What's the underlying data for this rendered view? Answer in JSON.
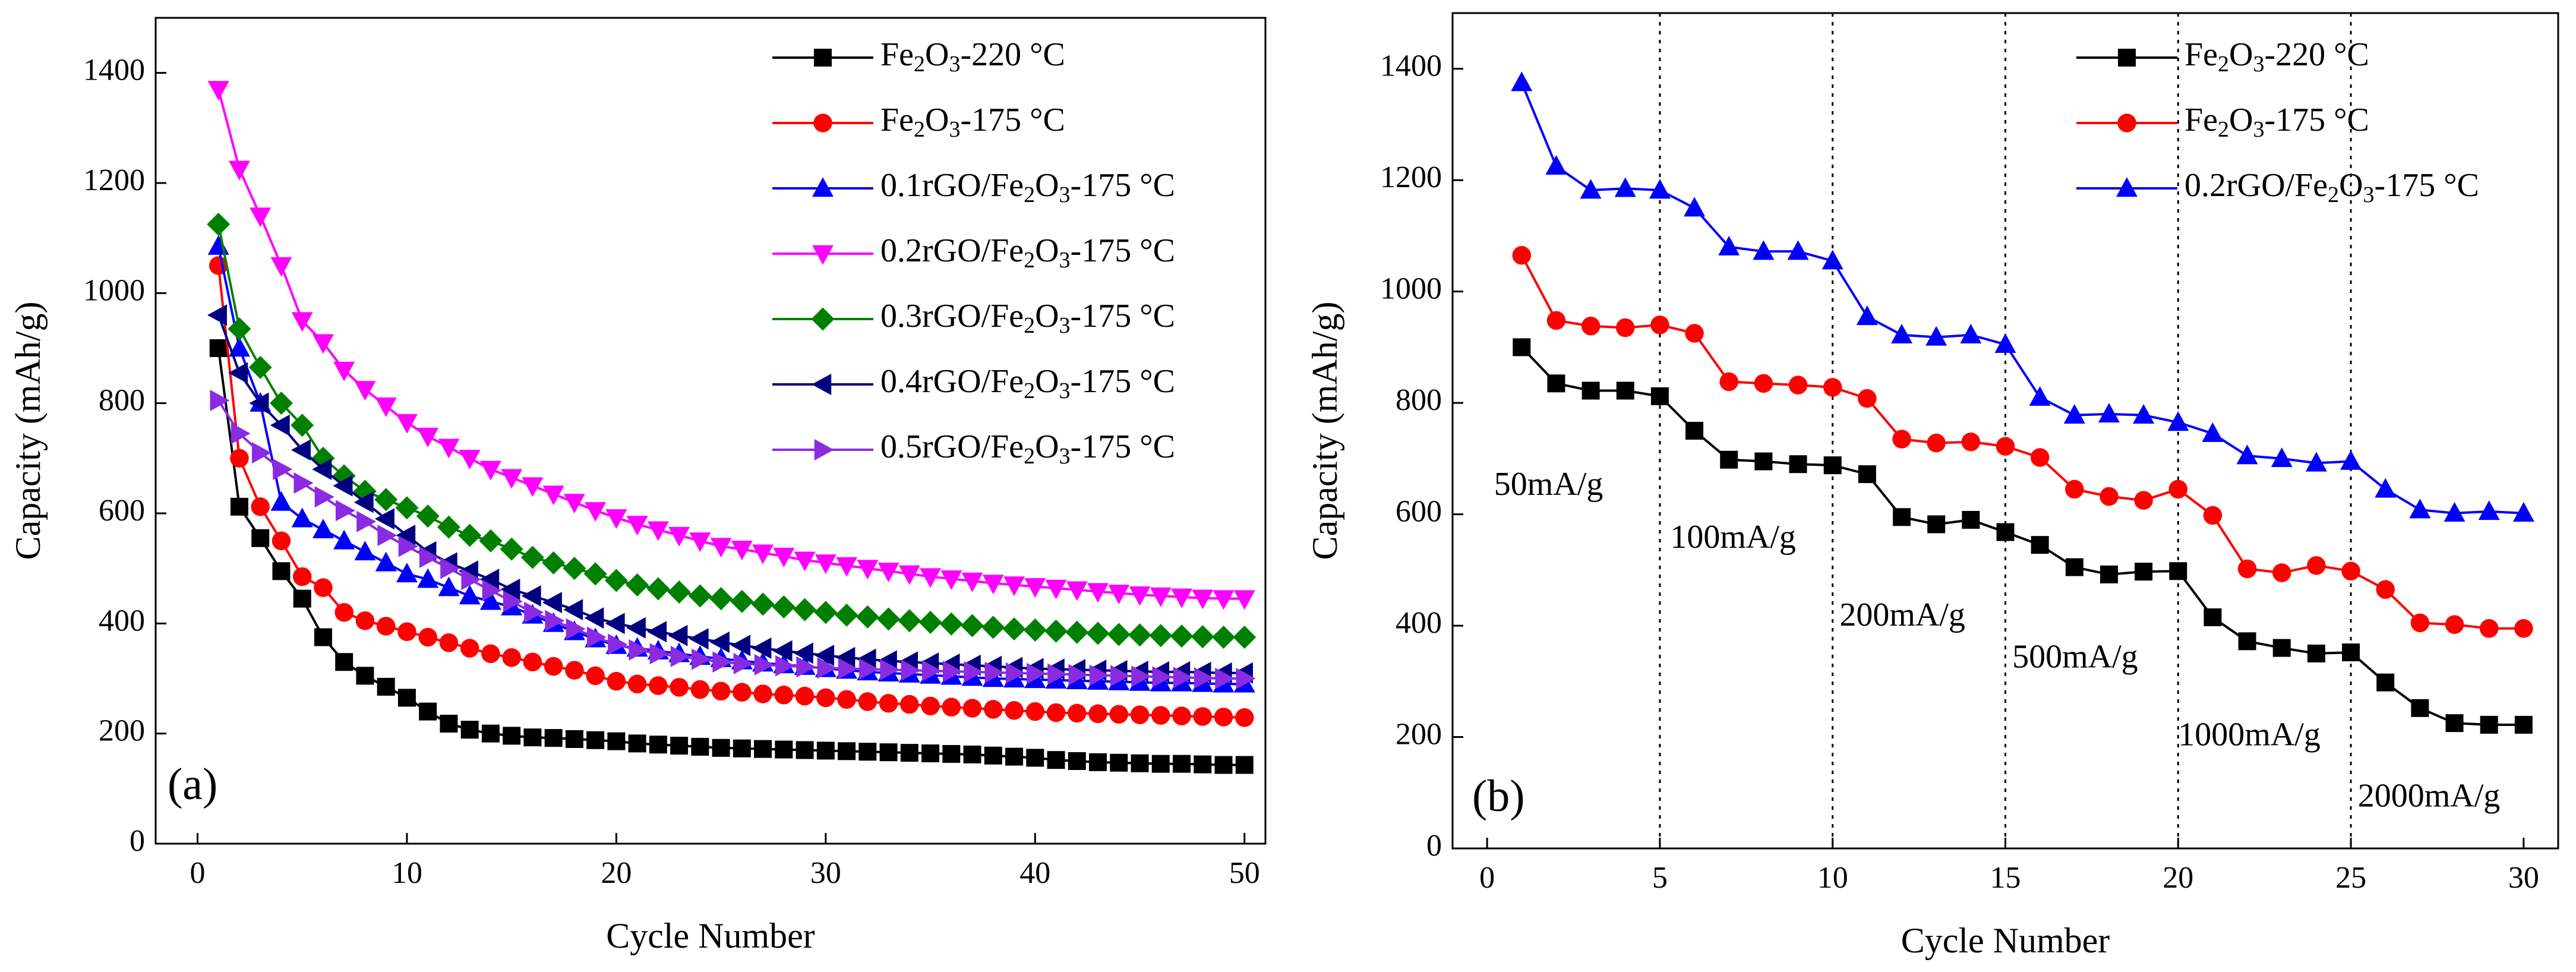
{
  "chart_data": [
    {
      "id": "a",
      "type": "line",
      "panel_label": "(a)",
      "xlabel": "Cycle Number",
      "ylabel": "Capacity (mAh/g)",
      "xlim": [
        -2,
        51
      ],
      "ylim": [
        0,
        1500
      ],
      "xticks": [
        0,
        10,
        20,
        30,
        40,
        50
      ],
      "yticks": [
        0,
        200,
        400,
        600,
        800,
        1000,
        1200,
        1400
      ],
      "legend_position": "top-right",
      "series": [
        {
          "name_pre": "Fe",
          "name_sub": "2",
          "name_mid": "O",
          "name_sub2": "3",
          "name_post": "-220 °C",
          "color": "#000000",
          "marker": "square",
          "x": [
            1,
            2,
            3,
            4,
            5,
            6,
            7,
            8,
            9,
            10,
            11,
            12,
            13,
            14,
            15,
            16,
            17,
            18,
            19,
            20,
            21,
            22,
            23,
            24,
            25,
            26,
            27,
            28,
            29,
            30,
            31,
            32,
            33,
            34,
            35,
            36,
            37,
            38,
            39,
            40,
            41,
            42,
            43,
            44,
            45,
            46,
            47,
            48,
            49,
            50
          ],
          "y": [
            900,
            612,
            555,
            495,
            445,
            375,
            330,
            305,
            285,
            265,
            240,
            218,
            207,
            200,
            196,
            193,
            192,
            190,
            188,
            186,
            182,
            180,
            178,
            176,
            174,
            173,
            172,
            171,
            170,
            169,
            168,
            167,
            166,
            165,
            164,
            163,
            162,
            160,
            158,
            156,
            152,
            150,
            148,
            147,
            146,
            145,
            145,
            144,
            143,
            143
          ]
        },
        {
          "name_pre": "Fe",
          "name_sub": "2",
          "name_mid": "O",
          "name_sub2": "3",
          "name_post": "-175 °C",
          "color": "#ff0000",
          "marker": "circle",
          "x": [
            1,
            2,
            3,
            4,
            5,
            6,
            7,
            8,
            9,
            10,
            11,
            12,
            13,
            14,
            15,
            16,
            17,
            18,
            19,
            20,
            21,
            22,
            23,
            24,
            25,
            26,
            27,
            28,
            29,
            30,
            31,
            32,
            33,
            34,
            35,
            36,
            37,
            38,
            39,
            40,
            41,
            42,
            43,
            44,
            45,
            46,
            47,
            48,
            49,
            50
          ],
          "y": [
            1050,
            700,
            612,
            550,
            485,
            465,
            420,
            405,
            395,
            385,
            375,
            365,
            355,
            345,
            338,
            330,
            322,
            315,
            305,
            295,
            290,
            287,
            284,
            280,
            277,
            275,
            272,
            270,
            268,
            265,
            262,
            258,
            255,
            253,
            250,
            248,
            246,
            244,
            242,
            240,
            238,
            237,
            236,
            235,
            234,
            233,
            232,
            231,
            230,
            229
          ]
        },
        {
          "name_pre": "0.1rGO/Fe",
          "name_sub": "2",
          "name_mid": "O",
          "name_sub2": "3",
          "name_post": "-175 °C",
          "color": "#0000ff",
          "marker": "triangle-up",
          "x": [
            1,
            2,
            3,
            4,
            5,
            6,
            7,
            8,
            9,
            10,
            11,
            12,
            13,
            14,
            15,
            16,
            17,
            18,
            19,
            20,
            21,
            22,
            23,
            24,
            25,
            26,
            27,
            28,
            29,
            30,
            31,
            32,
            33,
            34,
            35,
            36,
            37,
            38,
            39,
            40,
            41,
            42,
            43,
            44,
            45,
            46,
            47,
            48,
            49,
            50
          ],
          "y": [
            1085,
            900,
            800,
            620,
            590,
            570,
            550,
            530,
            510,
            490,
            480,
            465,
            450,
            440,
            430,
            415,
            400,
            385,
            372,
            360,
            355,
            350,
            345,
            340,
            336,
            332,
            328,
            325,
            322,
            318,
            315,
            312,
            310,
            308,
            306,
            304,
            302,
            300,
            299,
            298,
            297,
            296,
            295,
            294,
            293,
            292,
            292,
            291,
            290,
            290
          ]
        },
        {
          "name_pre": "0.2rGO/Fe",
          "name_sub": "2",
          "name_mid": "O",
          "name_sub2": "3",
          "name_post": "-175 °C",
          "color": "#ff00ff",
          "marker": "triangle-down",
          "x": [
            1,
            2,
            3,
            4,
            5,
            6,
            7,
            8,
            9,
            10,
            11,
            12,
            13,
            14,
            15,
            16,
            17,
            18,
            19,
            20,
            21,
            22,
            23,
            24,
            25,
            26,
            27,
            28,
            29,
            30,
            31,
            32,
            33,
            34,
            35,
            36,
            37,
            38,
            39,
            40,
            41,
            42,
            43,
            44,
            45,
            46,
            47,
            48,
            49,
            50
          ],
          "y": [
            1370,
            1225,
            1140,
            1050,
            950,
            910,
            860,
            825,
            795,
            765,
            740,
            720,
            700,
            680,
            665,
            650,
            635,
            620,
            605,
            592,
            580,
            570,
            560,
            550,
            540,
            535,
            528,
            522,
            515,
            510,
            505,
            500,
            495,
            490,
            485,
            481,
            477,
            473,
            470,
            467,
            464,
            461,
            458,
            455,
            452,
            450,
            448,
            446,
            445,
            445
          ]
        },
        {
          "name_pre": "0.3rGO/Fe",
          "name_sub": "2",
          "name_mid": "O",
          "name_sub2": "3",
          "name_post": "-175 °C",
          "color": "#008000",
          "marker": "diamond",
          "x": [
            1,
            2,
            3,
            4,
            5,
            6,
            7,
            8,
            9,
            10,
            11,
            12,
            13,
            14,
            15,
            16,
            17,
            18,
            19,
            20,
            21,
            22,
            23,
            24,
            25,
            26,
            27,
            28,
            29,
            30,
            31,
            32,
            33,
            34,
            35,
            36,
            37,
            38,
            39,
            40,
            41,
            42,
            43,
            44,
            45,
            46,
            47,
            48,
            49,
            50
          ],
          "y": [
            1125,
            935,
            865,
            800,
            760,
            700,
            668,
            640,
            625,
            610,
            595,
            575,
            560,
            550,
            535,
            520,
            510,
            500,
            490,
            478,
            470,
            463,
            457,
            450,
            445,
            440,
            435,
            430,
            425,
            420,
            415,
            412,
            408,
            405,
            402,
            399,
            396,
            393,
            390,
            388,
            386,
            384,
            382,
            380,
            379,
            378,
            377,
            376,
            375,
            375
          ]
        },
        {
          "name_pre": "0.4rGO/Fe",
          "name_sub": "2",
          "name_mid": "O",
          "name_sub2": "3",
          "name_post": "-175 °C",
          "color": "#000080",
          "marker": "triangle-left",
          "x": [
            1,
            2,
            3,
            4,
            5,
            6,
            7,
            8,
            9,
            10,
            11,
            12,
            13,
            14,
            15,
            16,
            17,
            18,
            19,
            20,
            21,
            22,
            23,
            24,
            25,
            26,
            27,
            28,
            29,
            30,
            31,
            32,
            33,
            34,
            35,
            36,
            37,
            38,
            39,
            40,
            41,
            42,
            43,
            44,
            45,
            46,
            47,
            48,
            49,
            50
          ],
          "y": [
            960,
            855,
            800,
            760,
            715,
            680,
            650,
            620,
            590,
            560,
            530,
            510,
            495,
            480,
            462,
            450,
            438,
            425,
            410,
            400,
            392,
            385,
            378,
            372,
            366,
            360,
            355,
            350,
            346,
            342,
            338,
            335,
            332,
            330,
            328,
            326,
            324,
            322,
            320,
            318,
            317,
            316,
            315,
            314,
            313,
            312,
            312,
            311,
            310,
            310
          ]
        },
        {
          "name_pre": "0.5rGO/Fe",
          "name_sub": "2",
          "name_mid": "O",
          "name_sub2": "3",
          "name_post": "-175 °C",
          "color": "#8a2be2",
          "marker": "triangle-right",
          "x": [
            1,
            2,
            3,
            4,
            5,
            6,
            7,
            8,
            9,
            10,
            11,
            12,
            13,
            14,
            15,
            16,
            17,
            18,
            19,
            20,
            21,
            22,
            23,
            24,
            25,
            26,
            27,
            28,
            29,
            30,
            31,
            32,
            33,
            34,
            35,
            36,
            37,
            38,
            39,
            40,
            41,
            42,
            43,
            44,
            45,
            46,
            47,
            48,
            49,
            50
          ],
          "y": [
            805,
            745,
            710,
            680,
            655,
            630,
            605,
            585,
            560,
            540,
            520,
            500,
            480,
            460,
            440,
            420,
            405,
            390,
            375,
            362,
            352,
            345,
            340,
            335,
            330,
            327,
            325,
            323,
            321,
            319,
            318,
            317,
            316,
            315,
            314,
            313,
            312,
            311,
            310,
            309,
            308,
            307,
            306,
            305,
            304,
            303,
            302,
            301,
            300,
            300
          ]
        }
      ]
    },
    {
      "id": "b",
      "type": "line",
      "panel_label": "(b)",
      "xlabel": "Cycle Number",
      "ylabel": "Capacity (mAh/g)",
      "xlim": [
        -1,
        31
      ],
      "ylim": [
        0,
        1500
      ],
      "xticks": [
        0,
        5,
        10,
        15,
        20,
        25,
        30
      ],
      "yticks": [
        0,
        200,
        400,
        600,
        800,
        1000,
        1200,
        1400
      ],
      "legend_position": "top-right",
      "dividers": [
        5,
        10,
        15,
        20,
        25
      ],
      "rate_labels": [
        {
          "text": "50mA/g",
          "x": 0.2,
          "y": 635
        },
        {
          "text": "100mA/g",
          "x": 5.3,
          "y": 540
        },
        {
          "text": "200mA/g",
          "x": 10.2,
          "y": 400
        },
        {
          "text": "500mA/g",
          "x": 15.2,
          "y": 325
        },
        {
          "text": "1000mA/g",
          "x": 20.0,
          "y": 185
        },
        {
          "text": "2000mA/g",
          "x": 25.2,
          "y": 75
        }
      ],
      "series": [
        {
          "name_pre": "Fe",
          "name_sub": "2",
          "name_mid": "O",
          "name_sub2": "3",
          "name_post": "-220 °C",
          "color": "#000000",
          "marker": "square",
          "x": [
            1,
            2,
            3,
            4,
            5,
            6,
            7,
            8,
            9,
            10,
            11,
            12,
            13,
            14,
            15,
            16,
            17,
            18,
            19,
            20,
            21,
            22,
            23,
            24,
            25,
            26,
            27,
            28,
            29,
            30
          ],
          "y": [
            900,
            835,
            822,
            822,
            812,
            750,
            698,
            695,
            690,
            688,
            672,
            595,
            582,
            590,
            568,
            545,
            505,
            492,
            497,
            498,
            415,
            372,
            360,
            350,
            352,
            298,
            252,
            225,
            222,
            222
          ]
        },
        {
          "name_pre": "Fe",
          "name_sub": "2",
          "name_mid": "O",
          "name_sub2": "3",
          "name_post": "-175 °C",
          "color": "#ff0000",
          "marker": "circle",
          "x": [
            1,
            2,
            3,
            4,
            5,
            6,
            7,
            8,
            9,
            10,
            11,
            12,
            13,
            14,
            15,
            16,
            17,
            18,
            19,
            20,
            21,
            22,
            23,
            24,
            25,
            26,
            27,
            28,
            29,
            30
          ],
          "y": [
            1065,
            948,
            938,
            935,
            940,
            925,
            838,
            835,
            832,
            828,
            808,
            735,
            728,
            730,
            722,
            702,
            645,
            632,
            625,
            645,
            598,
            502,
            495,
            508,
            498,
            465,
            405,
            402,
            395,
            395
          ]
        },
        {
          "name_pre": "0.2rGO/Fe",
          "name_sub": "2",
          "name_mid": "O",
          "name_sub2": "3",
          "name_post": "-175 °C",
          "color": "#0000ff",
          "marker": "triangle-up",
          "x": [
            1,
            2,
            3,
            4,
            5,
            6,
            7,
            8,
            9,
            10,
            11,
            12,
            13,
            14,
            15,
            16,
            17,
            18,
            19,
            20,
            21,
            22,
            23,
            24,
            25,
            26,
            27,
            28,
            29,
            30
          ],
          "y": [
            1375,
            1225,
            1182,
            1185,
            1182,
            1150,
            1080,
            1072,
            1072,
            1055,
            955,
            922,
            918,
            922,
            905,
            810,
            778,
            780,
            778,
            765,
            745,
            705,
            700,
            692,
            695,
            645,
            608,
            602,
            605,
            602
          ]
        }
      ]
    }
  ]
}
